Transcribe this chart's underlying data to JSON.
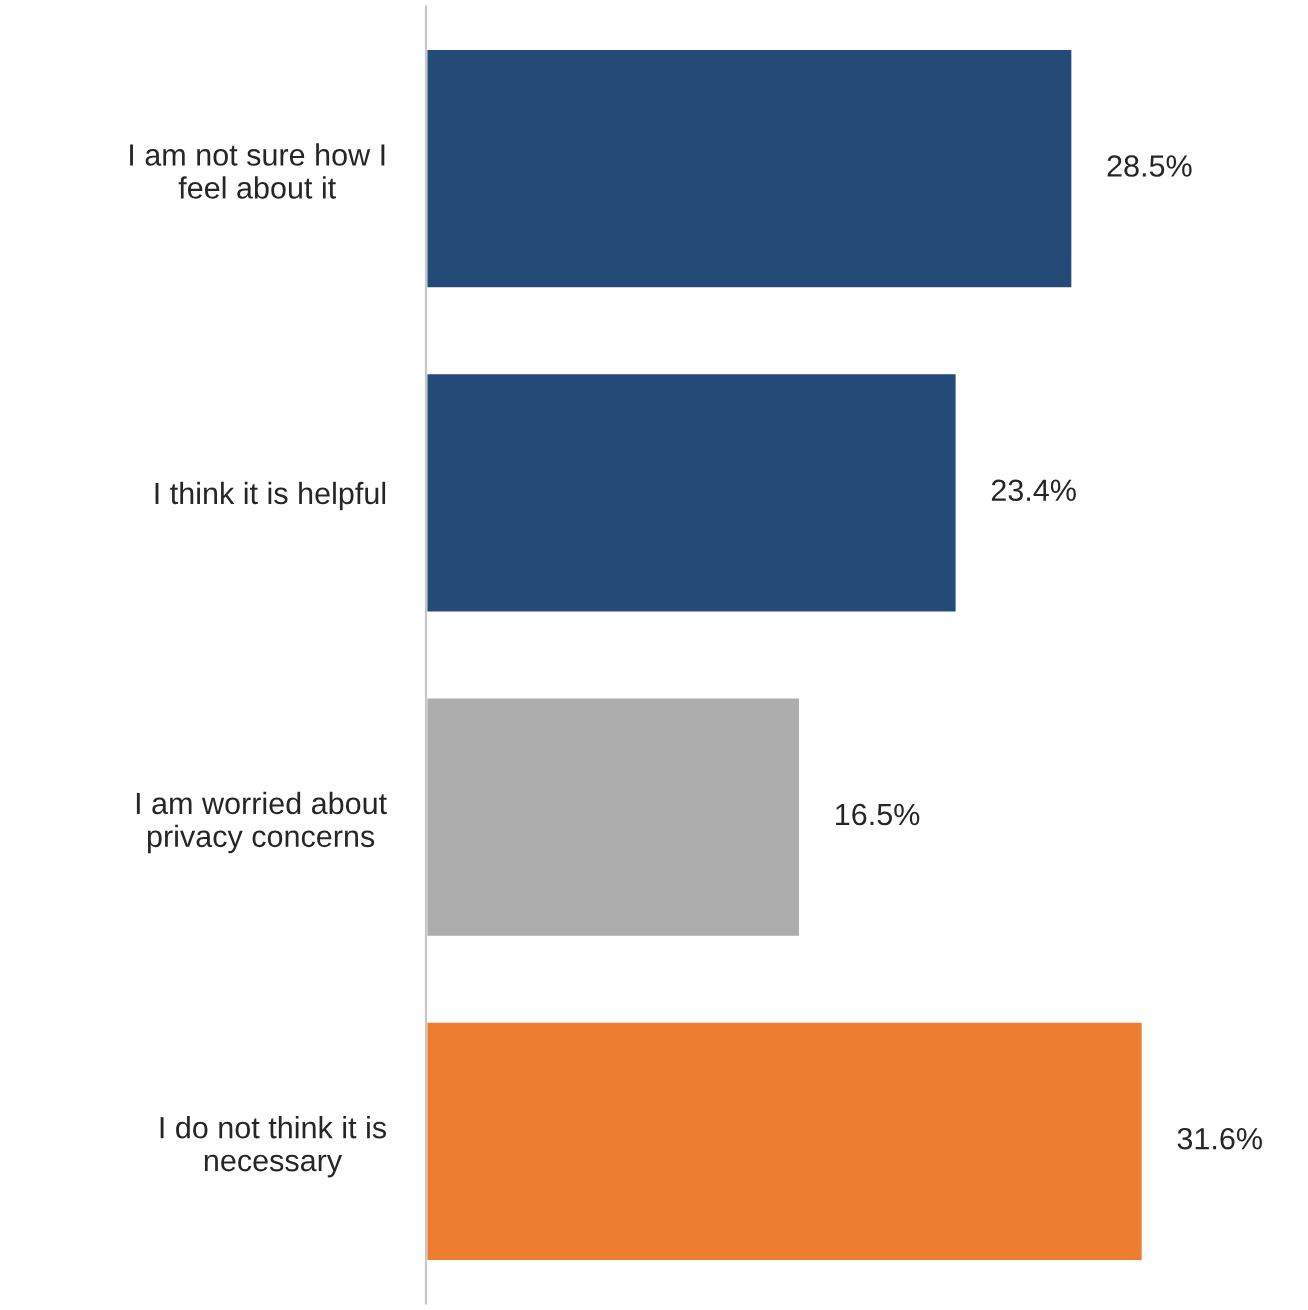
{
  "chart_data": {
    "type": "bar",
    "orientation": "horizontal",
    "categories": [
      "I am not sure how I\nfeel about it",
      "I think it is helpful",
      "I am worried about\nprivacy concerns",
      "I do not think it is\nnecessary"
    ],
    "values": [
      28.5,
      23.4,
      16.5,
      31.6
    ],
    "colors": [
      "#244b77",
      "#244b77",
      "#adadad",
      "#ed7d31"
    ],
    "value_labels": [
      "28.5%",
      "23.4%",
      "16.5%",
      "31.6%"
    ],
    "grid": false,
    "legend": false
  }
}
